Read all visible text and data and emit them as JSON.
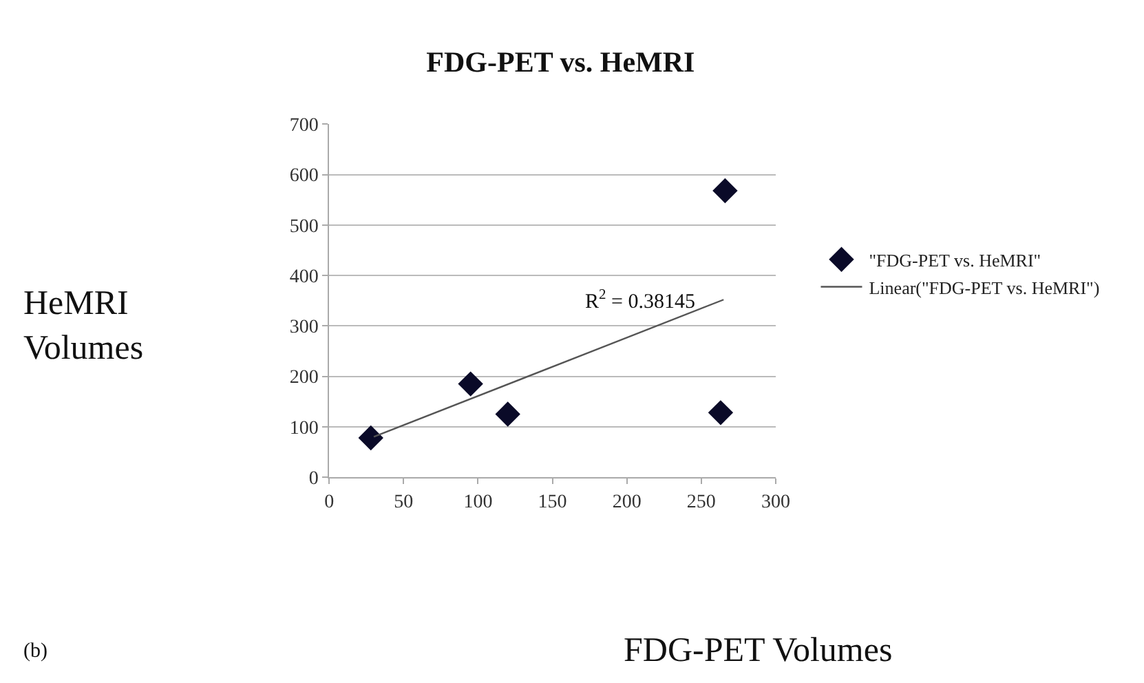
{
  "chart_data": {
    "type": "scatter",
    "title": "FDG-PET vs. HeMRI",
    "xlabel": "FDG-PET Volumes",
    "ylabel": "HeMRI Volumes",
    "series": [
      {
        "name": "\"FDG-PET vs. HeMRI\"",
        "color": "#0a0a28",
        "marker": "diamond",
        "x": [
          28,
          95,
          120,
          263,
          266
        ],
        "values": [
          78,
          185,
          125,
          128,
          568
        ]
      },
      {
        "name": "Linear(\"FDG-PET vs. HeMRI\")",
        "type": "line",
        "color": "#555555",
        "marker": "none",
        "x": [
          30,
          265
        ],
        "values": [
          80,
          352
        ]
      }
    ],
    "annotations": [
      "R$^{2}$ = 0.38145",
      "(b)"
    ],
    "xlim": [
      0,
      300
    ],
    "xticks": [
      0,
      50,
      100,
      150,
      200,
      250,
      300
    ],
    "ylim": [
      0,
      700
    ],
    "yticks": [
      0,
      100,
      200,
      300,
      400,
      500,
      600,
      700
    ],
    "grid": "y",
    "legend": "right"
  }
}
